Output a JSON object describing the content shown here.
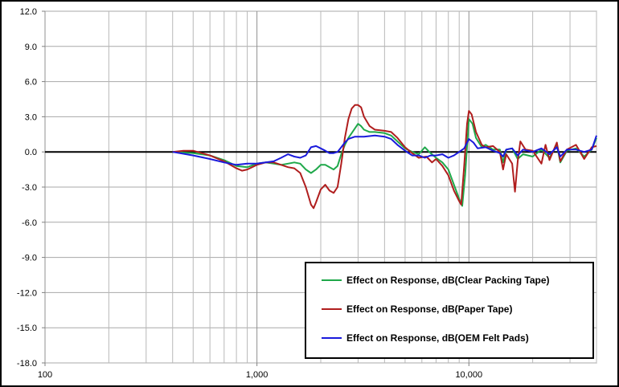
{
  "chart_data": {
    "type": "line",
    "title": "",
    "xlabel": "",
    "ylabel": "",
    "x_scale": "log",
    "xlim": [
      100,
      40000
    ],
    "ylim": [
      -18,
      12
    ],
    "y_ticks": [
      "12.0",
      "9.0",
      "6.0",
      "3.0",
      "0.0",
      "-3.0",
      "-6.0",
      "-9.0",
      "-12.0",
      "-15.0",
      "-18.0"
    ],
    "x_ticks": [
      "100",
      "1,000",
      "10,000"
    ],
    "grid": "on",
    "legend_position": "bottom-right",
    "series": [
      {
        "name": "Effect on Response, dB(Clear Packing Tape)",
        "color": "#1fa84a",
        "points": [
          [
            400,
            0.0
          ],
          [
            500,
            -0.1
          ],
          [
            600,
            -0.3
          ],
          [
            700,
            -0.7
          ],
          [
            800,
            -1.2
          ],
          [
            900,
            -1.3
          ],
          [
            1000,
            -1.0
          ],
          [
            1100,
            -0.9
          ],
          [
            1200,
            -1.0
          ],
          [
            1300,
            -1.1
          ],
          [
            1400,
            -1.0
          ],
          [
            1500,
            -0.9
          ],
          [
            1600,
            -1.0
          ],
          [
            1700,
            -1.5
          ],
          [
            1800,
            -1.8
          ],
          [
            1900,
            -1.5
          ],
          [
            2000,
            -1.1
          ],
          [
            2100,
            -1.1
          ],
          [
            2200,
            -1.3
          ],
          [
            2300,
            -1.5
          ],
          [
            2400,
            -1.2
          ],
          [
            2500,
            -0.2
          ],
          [
            2600,
            0.6
          ],
          [
            2700,
            1.2
          ],
          [
            2800,
            1.6
          ],
          [
            3000,
            2.4
          ],
          [
            3100,
            2.2
          ],
          [
            3200,
            1.9
          ],
          [
            3400,
            1.7
          ],
          [
            3600,
            1.7
          ],
          [
            4000,
            1.6
          ],
          [
            4300,
            1.4
          ],
          [
            4600,
            0.9
          ],
          [
            5000,
            0.3
          ],
          [
            5400,
            0.0
          ],
          [
            5800,
            -0.2
          ],
          [
            6200,
            0.4
          ],
          [
            6500,
            0.0
          ],
          [
            7000,
            -0.5
          ],
          [
            7500,
            -0.9
          ],
          [
            8000,
            -1.5
          ],
          [
            8500,
            -2.8
          ],
          [
            9000,
            -4.0
          ],
          [
            9300,
            -4.6
          ],
          [
            9600,
            -2.0
          ],
          [
            9800,
            0.5
          ],
          [
            10000,
            2.8
          ],
          [
            10400,
            2.4
          ],
          [
            10800,
            1.2
          ],
          [
            11500,
            0.4
          ],
          [
            12000,
            0.6
          ],
          [
            13000,
            0.2
          ],
          [
            14000,
            0.2
          ],
          [
            14500,
            -0.9
          ],
          [
            15000,
            0.2
          ],
          [
            16000,
            0.3
          ],
          [
            17000,
            -0.6
          ],
          [
            18000,
            -0.2
          ],
          [
            20000,
            -0.4
          ],
          [
            22000,
            0.2
          ],
          [
            24000,
            -0.5
          ],
          [
            26000,
            0.6
          ],
          [
            27000,
            -0.9
          ],
          [
            29000,
            0.1
          ],
          [
            32000,
            0.3
          ],
          [
            35000,
            -0.4
          ],
          [
            38000,
            0.2
          ],
          [
            40000,
            1.2
          ]
        ]
      },
      {
        "name": "Effect on Response, dB(Paper Tape)",
        "color": "#b01e1e",
        "points": [
          [
            400,
            0.0
          ],
          [
            450,
            0.1
          ],
          [
            500,
            0.1
          ],
          [
            600,
            -0.3
          ],
          [
            700,
            -0.8
          ],
          [
            800,
            -1.4
          ],
          [
            850,
            -1.6
          ],
          [
            900,
            -1.5
          ],
          [
            1000,
            -1.1
          ],
          [
            1100,
            -0.9
          ],
          [
            1200,
            -0.9
          ],
          [
            1300,
            -1.1
          ],
          [
            1400,
            -1.3
          ],
          [
            1500,
            -1.4
          ],
          [
            1600,
            -1.8
          ],
          [
            1700,
            -3.0
          ],
          [
            1800,
            -4.5
          ],
          [
            1850,
            -4.8
          ],
          [
            1900,
            -4.3
          ],
          [
            2000,
            -3.2
          ],
          [
            2100,
            -2.8
          ],
          [
            2200,
            -3.3
          ],
          [
            2300,
            -3.5
          ],
          [
            2400,
            -3.0
          ],
          [
            2500,
            -1.0
          ],
          [
            2600,
            1.2
          ],
          [
            2700,
            2.8
          ],
          [
            2800,
            3.7
          ],
          [
            2900,
            4.0
          ],
          [
            3000,
            4.0
          ],
          [
            3100,
            3.8
          ],
          [
            3200,
            3.0
          ],
          [
            3400,
            2.2
          ],
          [
            3600,
            1.9
          ],
          [
            4000,
            1.8
          ],
          [
            4300,
            1.7
          ],
          [
            4600,
            1.2
          ],
          [
            5000,
            0.4
          ],
          [
            5400,
            -0.1
          ],
          [
            5800,
            -0.5
          ],
          [
            6300,
            -0.4
          ],
          [
            6700,
            -0.9
          ],
          [
            7000,
            -0.6
          ],
          [
            7500,
            -1.2
          ],
          [
            8000,
            -2.0
          ],
          [
            8500,
            -3.3
          ],
          [
            9000,
            -4.2
          ],
          [
            9200,
            -4.5
          ],
          [
            9500,
            -1.2
          ],
          [
            9800,
            2.4
          ],
          [
            10000,
            3.5
          ],
          [
            10300,
            3.2
          ],
          [
            10800,
            1.7
          ],
          [
            11500,
            0.6
          ],
          [
            12000,
            0.4
          ],
          [
            13000,
            0.5
          ],
          [
            14000,
            0.0
          ],
          [
            14500,
            -1.5
          ],
          [
            15000,
            -0.2
          ],
          [
            16000,
            -1.0
          ],
          [
            16500,
            -3.4
          ],
          [
            17000,
            -0.8
          ],
          [
            17500,
            0.9
          ],
          [
            18500,
            0.2
          ],
          [
            20000,
            0.1
          ],
          [
            22000,
            -1.0
          ],
          [
            23000,
            0.6
          ],
          [
            24000,
            -0.7
          ],
          [
            26000,
            0.8
          ],
          [
            27000,
            -0.8
          ],
          [
            29000,
            0.2
          ],
          [
            32000,
            0.6
          ],
          [
            35000,
            -0.6
          ],
          [
            38000,
            0.4
          ],
          [
            40000,
            0.5
          ]
        ]
      },
      {
        "name": "Effect on Response, dB(OEM Felt Pads)",
        "color": "#1a1adc",
        "points": [
          [
            400,
            0.0
          ],
          [
            500,
            -0.3
          ],
          [
            600,
            -0.6
          ],
          [
            700,
            -0.9
          ],
          [
            800,
            -1.1
          ],
          [
            900,
            -1.0
          ],
          [
            1000,
            -1.0
          ],
          [
            1100,
            -0.9
          ],
          [
            1200,
            -0.8
          ],
          [
            1300,
            -0.5
          ],
          [
            1400,
            -0.2
          ],
          [
            1500,
            -0.4
          ],
          [
            1600,
            -0.5
          ],
          [
            1700,
            -0.3
          ],
          [
            1800,
            0.4
          ],
          [
            1900,
            0.5
          ],
          [
            2000,
            0.3
          ],
          [
            2100,
            0.1
          ],
          [
            2200,
            -0.1
          ],
          [
            2300,
            -0.1
          ],
          [
            2400,
            0.0
          ],
          [
            2500,
            0.4
          ],
          [
            2600,
            0.8
          ],
          [
            2700,
            1.1
          ],
          [
            2900,
            1.3
          ],
          [
            3200,
            1.3
          ],
          [
            3600,
            1.4
          ],
          [
            4000,
            1.3
          ],
          [
            4300,
            1.1
          ],
          [
            4600,
            0.6
          ],
          [
            5000,
            0.1
          ],
          [
            5400,
            -0.3
          ],
          [
            5800,
            -0.3
          ],
          [
            6200,
            -0.5
          ],
          [
            6600,
            -0.3
          ],
          [
            7000,
            -0.3
          ],
          [
            7500,
            -0.2
          ],
          [
            8000,
            -0.5
          ],
          [
            8500,
            -0.3
          ],
          [
            9000,
            0.0
          ],
          [
            9500,
            0.3
          ],
          [
            10000,
            1.1
          ],
          [
            10500,
            0.8
          ],
          [
            11000,
            0.3
          ],
          [
            12000,
            0.4
          ],
          [
            13000,
            0.1
          ],
          [
            14000,
            -0.1
          ],
          [
            14500,
            -0.4
          ],
          [
            15000,
            0.2
          ],
          [
            16000,
            0.3
          ],
          [
            17000,
            -0.3
          ],
          [
            18000,
            0.2
          ],
          [
            20000,
            0.0
          ],
          [
            22000,
            0.3
          ],
          [
            24000,
            -0.2
          ],
          [
            26000,
            0.4
          ],
          [
            27000,
            -0.4
          ],
          [
            29000,
            0.2
          ],
          [
            32000,
            0.2
          ],
          [
            35000,
            0.0
          ],
          [
            38000,
            0.2
          ],
          [
            40000,
            1.4
          ]
        ]
      }
    ]
  }
}
